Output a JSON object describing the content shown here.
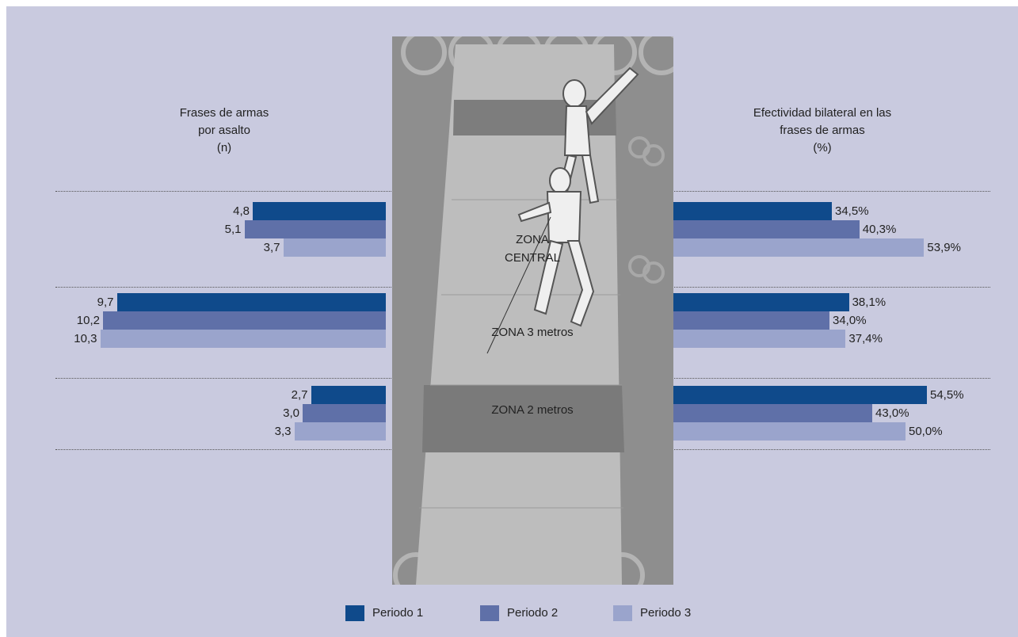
{
  "colors": {
    "background": "#c9cadf",
    "series": [
      "#0f4a8b",
      "#5f70a8",
      "#9aa4cc"
    ]
  },
  "chart_data": {
    "type": "bar",
    "layout": "butterfly",
    "left_title": [
      "Frases de armas",
      "por asalto",
      "(n)"
    ],
    "right_title": [
      "Efectividad bilateral en las",
      "frases de armas",
      "(%)"
    ],
    "series_names": [
      "Periodo 1",
      "Periodo 2",
      "Periodo 3"
    ],
    "categories": [
      {
        "label": [
          "ZONA",
          "CENTRAL"
        ]
      },
      {
        "label": [
          "ZONA 3 metros"
        ]
      },
      {
        "label": [
          "ZONA 2 metros"
        ]
      }
    ],
    "left": {
      "values": [
        [
          4.8,
          5.1,
          3.7
        ],
        [
          9.7,
          10.2,
          10.3
        ],
        [
          2.7,
          3.0,
          3.3
        ]
      ],
      "labels": [
        [
          "4,8",
          "5,1",
          "3,7"
        ],
        [
          "9,7",
          "10,2",
          "10,3"
        ],
        [
          "2,7",
          "3,0",
          "3,3"
        ]
      ]
    },
    "right": {
      "values": [
        [
          34.5,
          40.3,
          53.9
        ],
        [
          38.1,
          34.0,
          37.4
        ],
        [
          54.5,
          43.0,
          50.0
        ]
      ],
      "labels": [
        [
          "34,5%",
          "40,3%",
          "53,9%"
        ],
        [
          "38,1%",
          "34,0%",
          "37,4%"
        ],
        [
          "54,5%",
          "43,0%",
          "50,0%"
        ]
      ]
    }
  },
  "legend": [
    {
      "label": "Periodo 1"
    },
    {
      "label": "Periodo 2"
    },
    {
      "label": "Periodo 3"
    }
  ]
}
